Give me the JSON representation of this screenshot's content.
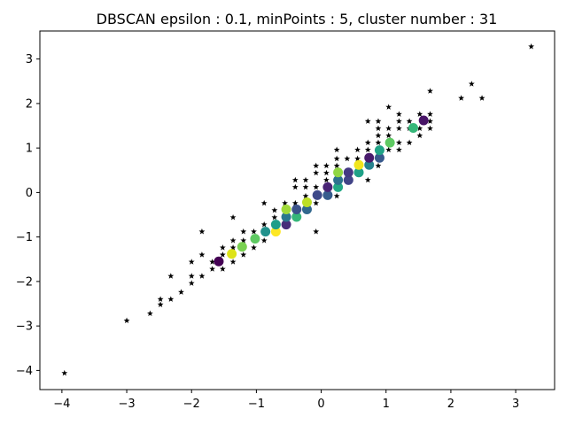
{
  "chart_data": {
    "type": "scatter",
    "title": "DBSCAN epsilon : 0.1, minPoints : 5, cluster number : 31",
    "xlabel": "",
    "ylabel": "",
    "xlim": [
      -4.34,
      3.6
    ],
    "ylim": [
      -4.43,
      3.63
    ],
    "xticks": [
      -4,
      -3,
      -2,
      -1,
      0,
      1,
      2,
      3
    ],
    "yticks": [
      -4,
      -3,
      -2,
      -1,
      0,
      1,
      2,
      3
    ],
    "xtick_labels": [
      "−4",
      "−3",
      "−2",
      "−1",
      "0",
      "1",
      "2",
      "3"
    ],
    "ytick_labels": [
      "−4",
      "−3",
      "−2",
      "−1",
      "0",
      "1",
      "2",
      "3"
    ],
    "grid": false,
    "legend": "none",
    "noise": {
      "marker": "star",
      "color": "#000000",
      "points": [
        [
          -3.96,
          -4.06
        ],
        [
          -3.0,
          -2.88
        ],
        [
          -2.64,
          -2.72
        ],
        [
          -2.48,
          -2.52
        ],
        [
          -2.48,
          -2.4
        ],
        [
          -2.32,
          -2.4
        ],
        [
          -2.32,
          -1.88
        ],
        [
          -2.16,
          -2.24
        ],
        [
          -2.0,
          -2.04
        ],
        [
          -2.0,
          -1.88
        ],
        [
          -2.0,
          -1.56
        ],
        [
          -1.84,
          -1.88
        ],
        [
          -1.84,
          -1.4
        ],
        [
          -1.84,
          -0.88
        ],
        [
          -1.68,
          -1.56
        ],
        [
          -1.68,
          -1.72
        ],
        [
          -1.52,
          -1.72
        ],
        [
          -1.52,
          -1.4
        ],
        [
          -1.52,
          -1.24
        ],
        [
          -1.36,
          -1.56
        ],
        [
          -1.36,
          -1.24
        ],
        [
          -1.36,
          -1.08
        ],
        [
          -1.36,
          -0.56
        ],
        [
          -1.2,
          -1.4
        ],
        [
          -1.2,
          -1.08
        ],
        [
          -1.2,
          -0.88
        ],
        [
          -1.04,
          -1.24
        ],
        [
          -1.04,
          -0.88
        ],
        [
          -0.88,
          -1.08
        ],
        [
          -0.88,
          -0.72
        ],
        [
          -0.88,
          -0.24
        ],
        [
          -0.72,
          -0.88
        ],
        [
          -0.72,
          -0.56
        ],
        [
          -0.72,
          -0.4
        ],
        [
          -0.56,
          -0.72
        ],
        [
          -0.56,
          -0.4
        ],
        [
          -0.56,
          -0.24
        ],
        [
          -0.4,
          -0.56
        ],
        [
          -0.4,
          -0.24
        ],
        [
          -0.4,
          0.12
        ],
        [
          -0.4,
          0.28
        ],
        [
          -0.24,
          -0.4
        ],
        [
          -0.24,
          -0.08
        ],
        [
          -0.24,
          0.12
        ],
        [
          -0.24,
          0.28
        ],
        [
          -0.08,
          -0.24
        ],
        [
          -0.08,
          0.12
        ],
        [
          -0.08,
          0.44
        ],
        [
          -0.08,
          0.6
        ],
        [
          -0.08,
          -0.88
        ],
        [
          0.08,
          -0.08
        ],
        [
          0.08,
          0.28
        ],
        [
          0.08,
          0.44
        ],
        [
          0.08,
          0.6
        ],
        [
          0.24,
          -0.08
        ],
        [
          0.24,
          0.12
        ],
        [
          0.24,
          0.6
        ],
        [
          0.24,
          0.76
        ],
        [
          0.24,
          0.96
        ],
        [
          0.4,
          0.28
        ],
        [
          0.4,
          0.44
        ],
        [
          0.4,
          0.76
        ],
        [
          0.56,
          0.44
        ],
        [
          0.56,
          0.6
        ],
        [
          0.56,
          0.76
        ],
        [
          0.56,
          0.96
        ],
        [
          0.72,
          0.28
        ],
        [
          0.72,
          0.6
        ],
        [
          0.72,
          0.96
        ],
        [
          0.72,
          1.12
        ],
        [
          0.72,
          1.6
        ],
        [
          0.88,
          0.6
        ],
        [
          0.88,
          0.76
        ],
        [
          0.88,
          1.12
        ],
        [
          0.88,
          1.28
        ],
        [
          0.88,
          1.44
        ],
        [
          0.88,
          1.6
        ],
        [
          1.04,
          0.96
        ],
        [
          1.04,
          1.28
        ],
        [
          1.04,
          1.44
        ],
        [
          1.04,
          1.92
        ],
        [
          1.2,
          0.96
        ],
        [
          1.2,
          1.12
        ],
        [
          1.2,
          1.44
        ],
        [
          1.2,
          1.6
        ],
        [
          1.2,
          1.76
        ],
        [
          1.36,
          1.12
        ],
        [
          1.36,
          1.44
        ],
        [
          1.36,
          1.6
        ],
        [
          1.52,
          1.28
        ],
        [
          1.52,
          1.44
        ],
        [
          1.52,
          1.76
        ],
        [
          1.68,
          1.44
        ],
        [
          1.68,
          1.6
        ],
        [
          1.68,
          1.76
        ],
        [
          1.68,
          2.28
        ],
        [
          2.16,
          2.12
        ],
        [
          2.32,
          2.44
        ],
        [
          2.48,
          2.12
        ],
        [
          3.24,
          3.28
        ]
      ]
    },
    "clusters": [
      {
        "x": -1.58,
        "y": -1.55,
        "color": "#440154"
      },
      {
        "x": -1.38,
        "y": -1.38,
        "color": "#dde318"
      },
      {
        "x": -1.22,
        "y": -1.22,
        "color": "#7ad151"
      },
      {
        "x": -1.02,
        "y": -1.04,
        "color": "#5ec962"
      },
      {
        "x": -0.86,
        "y": -0.88,
        "color": "#21918c"
      },
      {
        "x": -0.7,
        "y": -0.88,
        "color": "#fde725"
      },
      {
        "x": -0.7,
        "y": -0.72,
        "color": "#1f9e89"
      },
      {
        "x": -0.54,
        "y": -0.72,
        "color": "#472d7b"
      },
      {
        "x": -0.54,
        "y": -0.55,
        "color": "#2a788e"
      },
      {
        "x": -0.54,
        "y": -0.38,
        "color": "#a0da39"
      },
      {
        "x": -0.38,
        "y": -0.55,
        "color": "#35b779"
      },
      {
        "x": -0.38,
        "y": -0.38,
        "color": "#3b528b"
      },
      {
        "x": -0.22,
        "y": -0.38,
        "color": "#31688e"
      },
      {
        "x": -0.22,
        "y": -0.22,
        "color": "#bddf26"
      },
      {
        "x": -0.06,
        "y": -0.06,
        "color": "#3e4a89"
      },
      {
        "x": 0.1,
        "y": -0.06,
        "color": "#365c8d"
      },
      {
        "x": 0.1,
        "y": 0.12,
        "color": "#482475"
      },
      {
        "x": 0.26,
        "y": 0.12,
        "color": "#22a884"
      },
      {
        "x": 0.26,
        "y": 0.28,
        "color": "#2c728e"
      },
      {
        "x": 0.26,
        "y": 0.45,
        "color": "#90d743"
      },
      {
        "x": 0.42,
        "y": 0.28,
        "color": "#414487"
      },
      {
        "x": 0.42,
        "y": 0.45,
        "color": "#443983"
      },
      {
        "x": 0.58,
        "y": 0.45,
        "color": "#1fa187"
      },
      {
        "x": 0.58,
        "y": 0.62,
        "color": "#f1e51d"
      },
      {
        "x": 0.74,
        "y": 0.62,
        "color": "#26828e"
      },
      {
        "x": 0.74,
        "y": 0.78,
        "color": "#481a6c"
      },
      {
        "x": 0.9,
        "y": 0.78,
        "color": "#38598c"
      },
      {
        "x": 0.9,
        "y": 0.95,
        "color": "#20a386"
      },
      {
        "x": 1.06,
        "y": 1.12,
        "color": "#5ec962"
      },
      {
        "x": 1.42,
        "y": 1.45,
        "color": "#35b779"
      },
      {
        "x": 1.58,
        "y": 1.62,
        "color": "#481467"
      }
    ]
  }
}
